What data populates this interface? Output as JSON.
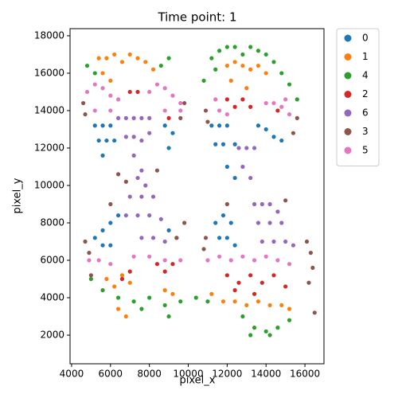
{
  "chart_data": {
    "type": "scatter",
    "title": "Time point: 1",
    "x_label": "pixel_x",
    "y_label": "pixel_y",
    "xlim": [
      3920,
      16980
    ],
    "ylim": [
      470,
      18380
    ],
    "xticks": [
      4000,
      6000,
      8000,
      10000,
      12000,
      14000,
      16000
    ],
    "yticks": [
      2000,
      4000,
      6000,
      8000,
      10000,
      12000,
      14000,
      16000,
      18000
    ],
    "legend": "outside-right",
    "series": [
      {
        "name": "0",
        "color": "#1f77b4",
        "x": [
          5200,
          5600,
          6000,
          5400,
          5800,
          6200,
          5600,
          8800,
          9200,
          9000,
          11200,
          11600,
          12000,
          11400,
          11800,
          12400,
          13600,
          14000,
          14400,
          14800,
          12000,
          12400,
          5200,
          5600,
          6000,
          6400,
          5600,
          6000,
          9000,
          9400,
          11400,
          11800,
          12200,
          11600,
          12000,
          12400
        ],
        "values": [
          13200,
          13200,
          13200,
          12400,
          12400,
          12400,
          11600,
          13200,
          12800,
          12000,
          13200,
          13200,
          13200,
          12200,
          12200,
          12200,
          13200,
          13000,
          12600,
          12400,
          11000,
          10400,
          7200,
          7600,
          8000,
          8400,
          6800,
          6800,
          7600,
          7200,
          8000,
          8400,
          8000,
          7200,
          7200,
          6800
        ]
      },
      {
        "name": "1",
        "color": "#ff7f0e",
        "x": [
          5400,
          5800,
          6200,
          6600,
          7000,
          7400,
          7800,
          5600,
          6000,
          8200,
          12000,
          12400,
          12800,
          13200,
          13600,
          14000,
          12200,
          13000,
          5800,
          6200,
          6600,
          7000,
          6400,
          6800,
          8800,
          9200,
          11200,
          11800,
          12400,
          13000,
          13600,
          14200,
          14800,
          15200
        ],
        "values": [
          16800,
          16800,
          17000,
          16600,
          17000,
          16800,
          16600,
          16000,
          15600,
          16200,
          16400,
          16600,
          16400,
          16200,
          16400,
          16000,
          15600,
          15200,
          5000,
          4600,
          5200,
          4800,
          3400,
          3000,
          4400,
          4200,
          4200,
          3800,
          3800,
          3600,
          3800,
          3600,
          3600,
          3400
        ]
      },
      {
        "name": "4",
        "color": "#2ca02c",
        "x": [
          4800,
          5200,
          8600,
          9000,
          11200,
          11600,
          12000,
          12400,
          12800,
          13200,
          13600,
          14000,
          14400,
          14800,
          15200,
          10800,
          15600,
          11400,
          5000,
          5600,
          6400,
          7200,
          8000,
          8800,
          9600,
          10400,
          11000,
          12800,
          13400,
          14000,
          14600,
          15200,
          13200,
          14200,
          7600,
          9000
        ],
        "values": [
          16400,
          16000,
          16400,
          16800,
          16800,
          17200,
          17400,
          17400,
          17000,
          17400,
          17200,
          17000,
          16600,
          16000,
          15400,
          15600,
          14600,
          16200,
          5000,
          4400,
          4000,
          3800,
          4000,
          3600,
          3800,
          4000,
          3800,
          3000,
          2400,
          2200,
          2400,
          2800,
          2000,
          2000,
          3400,
          3000
        ]
      },
      {
        "name": "2",
        "color": "#d62728",
        "x": [
          7000,
          7400,
          9000,
          12000,
          12400,
          12800,
          13200,
          14600,
          6600,
          7000,
          8400,
          8800,
          9200,
          12000,
          12600,
          13200,
          13800,
          14400,
          15000,
          12400,
          13400
        ],
        "values": [
          15000,
          15000,
          13600,
          14600,
          14200,
          14600,
          14200,
          14000,
          5000,
          5400,
          5800,
          5400,
          5800,
          5200,
          4800,
          5200,
          4800,
          5200,
          4600,
          4400,
          4200
        ]
      },
      {
        "name": "6",
        "color": "#9467bd",
        "x": [
          6400,
          6800,
          7200,
          7600,
          8000,
          6800,
          7200,
          7600,
          8000,
          7200,
          7600,
          12600,
          13000,
          13400,
          12800,
          13200,
          7400,
          7800,
          7000,
          7600,
          8200,
          6800,
          7400,
          8000,
          8600,
          7600,
          8200,
          8800,
          13400,
          13800,
          14200,
          14600,
          13600,
          14200,
          14800,
          13800,
          14400,
          15000,
          15400
        ],
        "values": [
          13600,
          13600,
          13600,
          13600,
          13600,
          12600,
          12600,
          12400,
          12800,
          11600,
          10800,
          12000,
          12000,
          12000,
          11000,
          10400,
          10400,
          10000,
          9400,
          9400,
          9400,
          8400,
          8400,
          8400,
          8200,
          7200,
          7200,
          7000,
          9000,
          9000,
          9000,
          8600,
          8000,
          8000,
          8000,
          7000,
          7000,
          7000,
          6800
        ]
      },
      {
        "name": "3",
        "color": "#8c564b",
        "x": [
          4600,
          4700,
          9800,
          9600,
          6400,
          8400,
          6800,
          10900,
          11000,
          15600,
          15400,
          4700,
          4900,
          5000,
          6000,
          9800,
          9400,
          10900,
          10800,
          16100,
          16300,
          16400,
          16200,
          16500,
          12000,
          15000
        ],
        "values": [
          14400,
          13800,
          14400,
          13600,
          10600,
          10800,
          10200,
          14000,
          13400,
          13600,
          12800,
          7000,
          6400,
          5200,
          9000,
          8000,
          7200,
          7200,
          6600,
          7000,
          6400,
          5600,
          4800,
          3200,
          9000,
          9200
        ]
      },
      {
        "name": "5",
        "color": "#e377c2",
        "x": [
          4800,
          5200,
          5600,
          6000,
          6400,
          8000,
          8400,
          8800,
          9200,
          9600,
          5200,
          6000,
          8800,
          9600,
          11600,
          12000,
          14000,
          14400,
          14800,
          15200,
          11400,
          15000,
          4900,
          5400,
          6000,
          7200,
          8000,
          8800,
          9600,
          11000,
          11600,
          12200,
          12800,
          13400,
          14000,
          14600,
          15200
        ],
        "values": [
          15000,
          15400,
          15200,
          14800,
          14600,
          15000,
          15400,
          15200,
          14800,
          14400,
          14000,
          14000,
          14000,
          14000,
          14000,
          13800,
          14400,
          14400,
          14200,
          13800,
          14600,
          14600,
          6000,
          6000,
          5800,
          6200,
          6200,
          6000,
          6000,
          6000,
          6200,
          6000,
          6200,
          6000,
          6200,
          6000,
          5800
        ]
      }
    ]
  }
}
